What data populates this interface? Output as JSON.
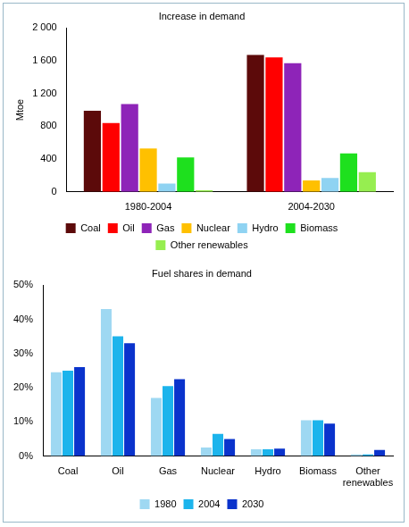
{
  "chart_data": [
    {
      "type": "bar",
      "title": "Increase in demand",
      "y_label": "Mtoe",
      "categories": [
        "1980-2004",
        "2004-2030"
      ],
      "series": [
        {
          "name": "Coal",
          "color": "#5c0a0a",
          "values": [
            990,
            1670
          ]
        },
        {
          "name": "Oil",
          "color": "#ff0000",
          "values": [
            840,
            1640
          ]
        },
        {
          "name": "Gas",
          "color": "#8e24b8",
          "values": [
            1070,
            1570
          ]
        },
        {
          "name": "Nuclear",
          "color": "#ffc000",
          "values": [
            530,
            140
          ]
        },
        {
          "name": "Hydro",
          "color": "#8fd3f2",
          "values": [
            100,
            170
          ]
        },
        {
          "name": "Biomass",
          "color": "#1ee01e",
          "values": [
            420,
            470
          ]
        },
        {
          "name": "Other renewables",
          "color": "#96ee50",
          "values": [
            20,
            240
          ]
        }
      ],
      "ylim": [
        0,
        2000
      ],
      "yticks": [
        0,
        400,
        800,
        {
          "value": 1200,
          "label": "1 200"
        },
        {
          "value": 1600,
          "label": "1 600"
        },
        {
          "value": 2000,
          "label": "2 000"
        }
      ],
      "grid": false,
      "legend": "bottom"
    },
    {
      "type": "bar",
      "title": "Fuel shares in demand",
      "categories": [
        "Coal",
        "Oil",
        "Gas",
        "Nuclear",
        "Hydro",
        "Biomass",
        "Other renewables"
      ],
      "series": [
        {
          "name": "1980",
          "color": "#9ed8f2",
          "values": [
            24.5,
            43,
            17,
            2.5,
            2,
            10.5,
            0.5
          ]
        },
        {
          "name": "2004",
          "color": "#1cb4ec",
          "values": [
            25,
            35,
            20.5,
            6.5,
            2,
            10.5,
            0.5
          ]
        },
        {
          "name": "2030",
          "color": "#0a33cc",
          "values": [
            26,
            33,
            22.5,
            5,
            2.2,
            9.5,
            1.8
          ]
        }
      ],
      "ylim": [
        0,
        50
      ],
      "yticks": [
        {
          "value": 0,
          "label": "0%"
        },
        {
          "value": 10,
          "label": "10%"
        },
        {
          "value": 20,
          "label": "20%"
        },
        {
          "value": 30,
          "label": "30%"
        },
        {
          "value": 40,
          "label": "40%"
        },
        {
          "value": 50,
          "label": "50%"
        }
      ],
      "grid": false,
      "legend": "bottom"
    }
  ]
}
